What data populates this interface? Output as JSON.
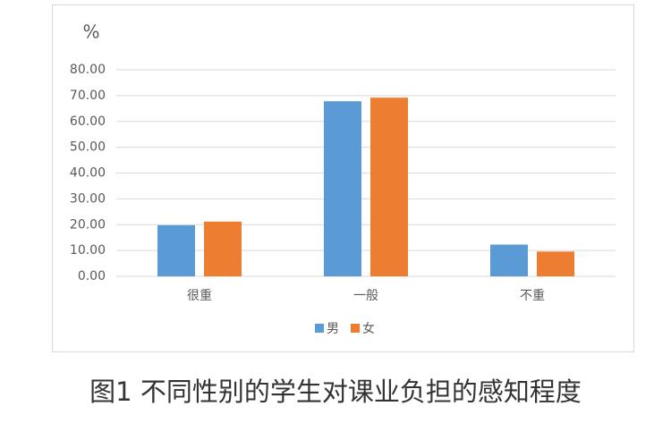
{
  "chart_data": {
    "type": "bar",
    "title": "图1  不同性别的学生对课业负担的感知程度",
    "y_label": "%",
    "categories": [
      "很重",
      "一般",
      "不重"
    ],
    "series": [
      {
        "name": "男",
        "color": "#5b9bd5",
        "values": [
          19.8,
          67.8,
          12.3
        ]
      },
      {
        "name": "女",
        "color": "#ed7d31",
        "values": [
          21.2,
          69.2,
          9.6
        ]
      }
    ],
    "ylim": [
      0,
      80
    ],
    "yticks": [
      {
        "value": 0,
        "label": "0.00"
      },
      {
        "value": 10,
        "label": "10.00"
      },
      {
        "value": 20,
        "label": "20.00"
      },
      {
        "value": 30,
        "label": "30.00"
      },
      {
        "value": 40,
        "label": "40.00"
      },
      {
        "value": 50,
        "label": "50.00"
      },
      {
        "value": 60,
        "label": "60.00"
      },
      {
        "value": 70,
        "label": "70.00"
      },
      {
        "value": 80,
        "label": "80.00"
      }
    ],
    "grid": true,
    "legend": "bottom"
  }
}
